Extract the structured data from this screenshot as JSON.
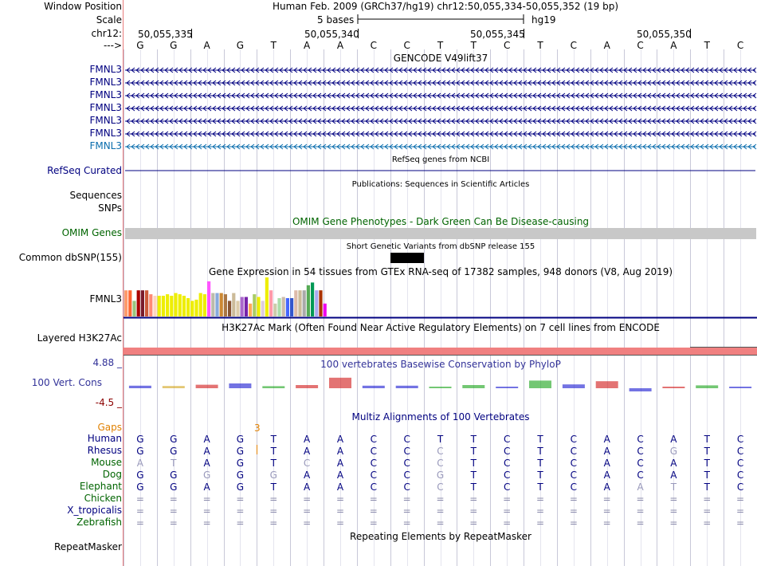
{
  "colors": {
    "navy": "#000080",
    "green": "#006400",
    "blue_link": "#0a6dad",
    "red": "#8b0000",
    "conserv": "#333399",
    "gray_bar": "#c8c8c8",
    "h3k27": "#f08080",
    "gap_orange": "#e08000"
  },
  "header": {
    "window_position_label": "Window Position",
    "scale_label": "Scale",
    "chrom_label": "chr12:",
    "arrow_label": "--->",
    "assembly": "Human Feb. 2009 (GRCh37/hg19)   chr12:50,055,334-50,055,352 (19 bp)",
    "scale_text": "5 bases",
    "db": "hg19",
    "ticks": [
      "50,055,335",
      "50,055,340",
      "50,055,345",
      "50,055,350"
    ]
  },
  "sequence": [
    "G",
    "G",
    "A",
    "G",
    "T",
    "A",
    "A",
    "C",
    "C",
    "T",
    "T",
    "C",
    "T",
    "C",
    "A",
    "C",
    "A",
    "T",
    "C"
  ],
  "gencode": {
    "title": "GENCODE V49lift37",
    "genes": [
      {
        "name": "FMNL3",
        "color": "#000080"
      },
      {
        "name": "FMNL3",
        "color": "#000080"
      },
      {
        "name": "FMNL3",
        "color": "#000080"
      },
      {
        "name": "FMNL3",
        "color": "#000080"
      },
      {
        "name": "FMNL3",
        "color": "#000080"
      },
      {
        "name": "FMNL3",
        "color": "#000080"
      },
      {
        "name": "FMNL3",
        "color": "#0a6dad"
      }
    ]
  },
  "refseq": {
    "title": "RefSeq genes from NCBI",
    "label": "RefSeq Curated"
  },
  "publications": {
    "title": "Publications: Sequences in Scientific Articles",
    "label1": "Sequences",
    "label2": "SNPs"
  },
  "omim": {
    "title": "OMIM Gene Phenotypes - Dark Green Can Be Disease-causing",
    "label": "OMIM Genes"
  },
  "dbsnp": {
    "title": "Short Genetic Variants from dbSNP release 155",
    "label": "Common dbSNP(155)"
  },
  "gtex": {
    "title": "Gene Expression in 54 tissues from GTEx RNA-seq of 17382 samples, 948 donors (V8, Aug 2019)",
    "label": "FMNL3",
    "bars": [
      {
        "color": "#ff9a6a",
        "v": 0.67
      },
      {
        "color": "#ff6633",
        "v": 0.67
      },
      {
        "color": "#9ac57e",
        "v": 0.4
      },
      {
        "color": "#aa0000",
        "v": 0.67
      },
      {
        "color": "#7a1a2a",
        "v": 0.67
      },
      {
        "color": "#cc5a3a",
        "v": 0.67
      },
      {
        "color": "#ff8a75",
        "v": 0.57
      },
      {
        "color": "#ffd4bf",
        "v": 0.53
      },
      {
        "color": "#eeee00",
        "v": 0.53
      },
      {
        "color": "#eeee00",
        "v": 0.53
      },
      {
        "color": "#eeee00",
        "v": 0.57
      },
      {
        "color": "#eeee00",
        "v": 0.53
      },
      {
        "color": "#eeee00",
        "v": 0.6
      },
      {
        "color": "#eeee00",
        "v": 0.57
      },
      {
        "color": "#eeee00",
        "v": 0.53
      },
      {
        "color": "#eeee00",
        "v": 0.47
      },
      {
        "color": "#eeee00",
        "v": 0.4
      },
      {
        "color": "#eeee00",
        "v": 0.43
      },
      {
        "color": "#eeee00",
        "v": 0.6
      },
      {
        "color": "#eeee00",
        "v": 0.57
      },
      {
        "color": "#ff55ff",
        "v": 0.9
      },
      {
        "color": "#bbbbaa",
        "v": 0.6
      },
      {
        "color": "#88aadd",
        "v": 0.6
      },
      {
        "color": "#cc8833",
        "v": 0.6
      },
      {
        "color": "#aa7744",
        "v": 0.57
      },
      {
        "color": "#885533",
        "v": 0.4
      },
      {
        "color": "#ccbb99",
        "v": 0.6
      },
      {
        "color": "#ddccaa",
        "v": 0.4
      },
      {
        "color": "#aa66cc",
        "v": 0.5
      },
      {
        "color": "#7722aa",
        "v": 0.5
      },
      {
        "color": "#ffaa55",
        "v": 0.33
      },
      {
        "color": "#aacc66",
        "v": 0.57
      },
      {
        "color": "#eeee00",
        "v": 0.5
      },
      {
        "color": "#ddccdd",
        "v": 0.4
      },
      {
        "color": "#eeee00",
        "v": 1.0
      },
      {
        "color": "#ff99aa",
        "v": 0.67
      },
      {
        "color": "#ccccaa",
        "v": 0.33
      },
      {
        "color": "#aaddaa",
        "v": 0.47
      },
      {
        "color": "#ccbbaa",
        "v": 0.5
      },
      {
        "color": "#4466ff",
        "v": 0.47
      },
      {
        "color": "#3355cc",
        "v": 0.47
      },
      {
        "color": "#ddbbaa",
        "v": 0.67
      },
      {
        "color": "#ccbb99",
        "v": 0.67
      },
      {
        "color": "#aaaaaa",
        "v": 0.67
      },
      {
        "color": "#55aa55",
        "v": 0.8
      },
      {
        "color": "#009955",
        "v": 0.87
      },
      {
        "color": "#aaaaee",
        "v": 0.67
      },
      {
        "color": "#aa3300",
        "v": 0.67
      },
      {
        "color": "#ee00ee",
        "v": 0.33
      }
    ]
  },
  "h3k27ac": {
    "title": "H3K27Ac Mark (Often Found Near Active Regulatory Elements) on 7 cell lines from ENCODE",
    "label": "Layered H3K27Ac"
  },
  "conservation": {
    "title": "100 vertebrates Basewise Conservation by PhyloP",
    "label": "100 Vert. Cons",
    "max_label": "4.88 _",
    "min_label": "-4.5 _",
    "scores": [
      0.3,
      0.2,
      0.6,
      1.0,
      0.15,
      0.5,
      2.8,
      0.3,
      0.3,
      0.0,
      0.5,
      0.0,
      1.9,
      0.7,
      1.7,
      -0.5,
      0.0,
      0.4,
      0.0
    ]
  },
  "multiz": {
    "title": "Multiz Alignments of 100 Vertebrates",
    "gaps_label": "Gaps",
    "gap_count": "3",
    "species": [
      {
        "name": "Human",
        "color": "#000080",
        "seq": [
          "G",
          "G",
          "A",
          "G",
          "T",
          "A",
          "A",
          "C",
          "C",
          "T",
          "T",
          "C",
          "T",
          "C",
          "A",
          "C",
          "A",
          "T",
          "C"
        ]
      },
      {
        "name": "Rhesus",
        "color": "#000080",
        "seq": [
          "G",
          "G",
          "A",
          "G",
          "T",
          "A",
          "A",
          "C",
          "C",
          "C",
          "T",
          "C",
          "T",
          "C",
          "A",
          "C",
          "G",
          "T",
          "C"
        ]
      },
      {
        "name": "Mouse",
        "color": "#006400",
        "seq": [
          "A",
          "T",
          "A",
          "G",
          "T",
          "C",
          "A",
          "C",
          "C",
          "C",
          "T",
          "C",
          "T",
          "C",
          "A",
          "C",
          "A",
          "T",
          "C"
        ]
      },
      {
        "name": "Dog",
        "color": "#006400",
        "seq": [
          "G",
          "G",
          "G",
          "G",
          "G",
          "A",
          "A",
          "C",
          "C",
          "G",
          "T",
          "C",
          "T",
          "C",
          "A",
          "C",
          "A",
          "T",
          "C"
        ]
      },
      {
        "name": "Elephant",
        "color": "#006400",
        "seq": [
          "G",
          "G",
          "A",
          "G",
          "T",
          "A",
          "A",
          "C",
          "C",
          "C",
          "T",
          "C",
          "T",
          "C",
          "A",
          "A",
          "T",
          "T",
          "C"
        ]
      },
      {
        "name": "Chicken",
        "color": "#006400",
        "seq": [
          "=",
          "=",
          "=",
          "=",
          "=",
          "=",
          "=",
          "=",
          "=",
          "=",
          "=",
          "=",
          "=",
          "=",
          "=",
          "=",
          "=",
          "=",
          "="
        ]
      },
      {
        "name": "X_tropicalis",
        "color": "#000080",
        "seq": [
          "=",
          "=",
          "=",
          "=",
          "=",
          "=",
          "=",
          "=",
          "=",
          "=",
          "=",
          "=",
          "=",
          "=",
          "=",
          "=",
          "=",
          "=",
          "="
        ]
      },
      {
        "name": "Zebrafish",
        "color": "#006400",
        "seq": [
          "=",
          "=",
          "=",
          "=",
          "=",
          "=",
          "=",
          "=",
          "=",
          "=",
          "=",
          "=",
          "=",
          "=",
          "=",
          "=",
          "=",
          "=",
          "="
        ]
      }
    ]
  },
  "repeatmasker": {
    "title": "Repeating Elements by RepeatMasker",
    "label": "RepeatMasker"
  }
}
